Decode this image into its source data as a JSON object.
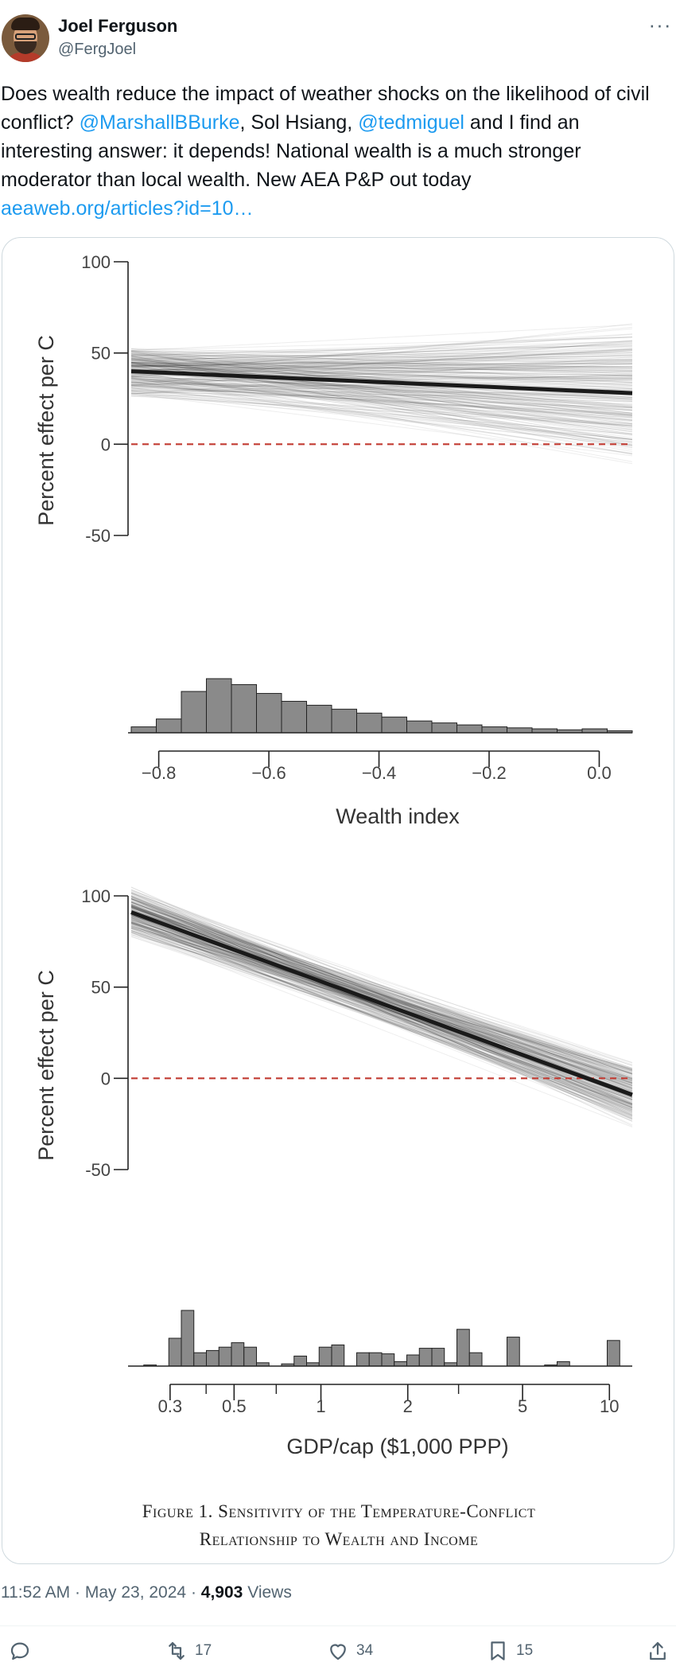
{
  "author": {
    "name": "Joel Ferguson",
    "handle": "@FergJoel"
  },
  "tweet": {
    "segments": [
      {
        "text": "Does wealth reduce the impact of weather shocks on the likelihood of civil conflict? ",
        "type": "text"
      },
      {
        "text": "@MarshallBBurke",
        "type": "mention"
      },
      {
        "text": ", Sol Hsiang, ",
        "type": "text"
      },
      {
        "text": "@tedmiguel",
        "type": "mention"
      },
      {
        "text": " and I find an interesting answer: it depends! National wealth is a much stronger moderator than local wealth. New AEA P&P out today",
        "type": "text"
      }
    ],
    "link": "aeaweb.org/articles?id=10…"
  },
  "figure": {
    "caption_line1": "Figure 1. Sensitivity of the Temperature-Conflict",
    "caption_line2": "Relationship to Wealth and Income"
  },
  "chart_data": [
    {
      "type": "line",
      "xlabel": "Wealth index",
      "ylabel": "Percent effect per C",
      "xlim": [
        -0.85,
        0.06
      ],
      "ylim": [
        -50,
        100
      ],
      "xticks": [
        "-0.8",
        "-0.6",
        "-0.4",
        "-0.2",
        "0.0"
      ],
      "xtick_values": [
        -0.8,
        -0.6,
        -0.4,
        -0.2,
        0.0
      ],
      "yticks": [
        "100",
        "50",
        "0",
        "-50"
      ],
      "ytick_values": [
        100,
        50,
        0,
        -50
      ],
      "main_line": {
        "x": [
          -0.85,
          0.06
        ],
        "y": [
          40,
          28
        ]
      },
      "zero_line": 0,
      "histogram_counts": [
        6,
        14,
        42,
        55,
        49,
        40,
        32,
        28,
        24,
        20,
        16,
        12,
        10,
        8,
        6,
        5,
        4,
        3,
        4,
        2
      ]
    },
    {
      "type": "line",
      "xlabel": "GDP/cap ($1,000 PPP)",
      "ylabel": "Percent effect per C",
      "xscale": "log",
      "xlim": [
        0.22,
        12
      ],
      "ylim": [
        -50,
        100
      ],
      "xticks": [
        "0.3",
        "0.5",
        "1",
        "2",
        "5",
        "10"
      ],
      "xtick_values": [
        0.3,
        0.5,
        1,
        2,
        5,
        10
      ],
      "yticks": [
        "100",
        "50",
        "0",
        "-50"
      ],
      "ytick_values": [
        100,
        50,
        0,
        -50
      ],
      "main_line": {
        "x": [
          0.22,
          12
        ],
        "y": [
          91,
          -9
        ]
      },
      "zero_line": 0,
      "histogram_counts": [
        0,
        1,
        0,
        25,
        50,
        12,
        14,
        17,
        21,
        17,
        3,
        0,
        2,
        9,
        3,
        17,
        19,
        0,
        12,
        12,
        11,
        4,
        10,
        16,
        16,
        3,
        33,
        12,
        0,
        0,
        26,
        0,
        0,
        1,
        4,
        0,
        0,
        0,
        23,
        0
      ]
    }
  ],
  "footer": {
    "time": "11:52 AM",
    "date": "May 23, 2024",
    "views_count": "4,903",
    "views_label": "Views"
  },
  "actions": {
    "retweets": "17",
    "likes": "34",
    "bookmarks": "15"
  }
}
